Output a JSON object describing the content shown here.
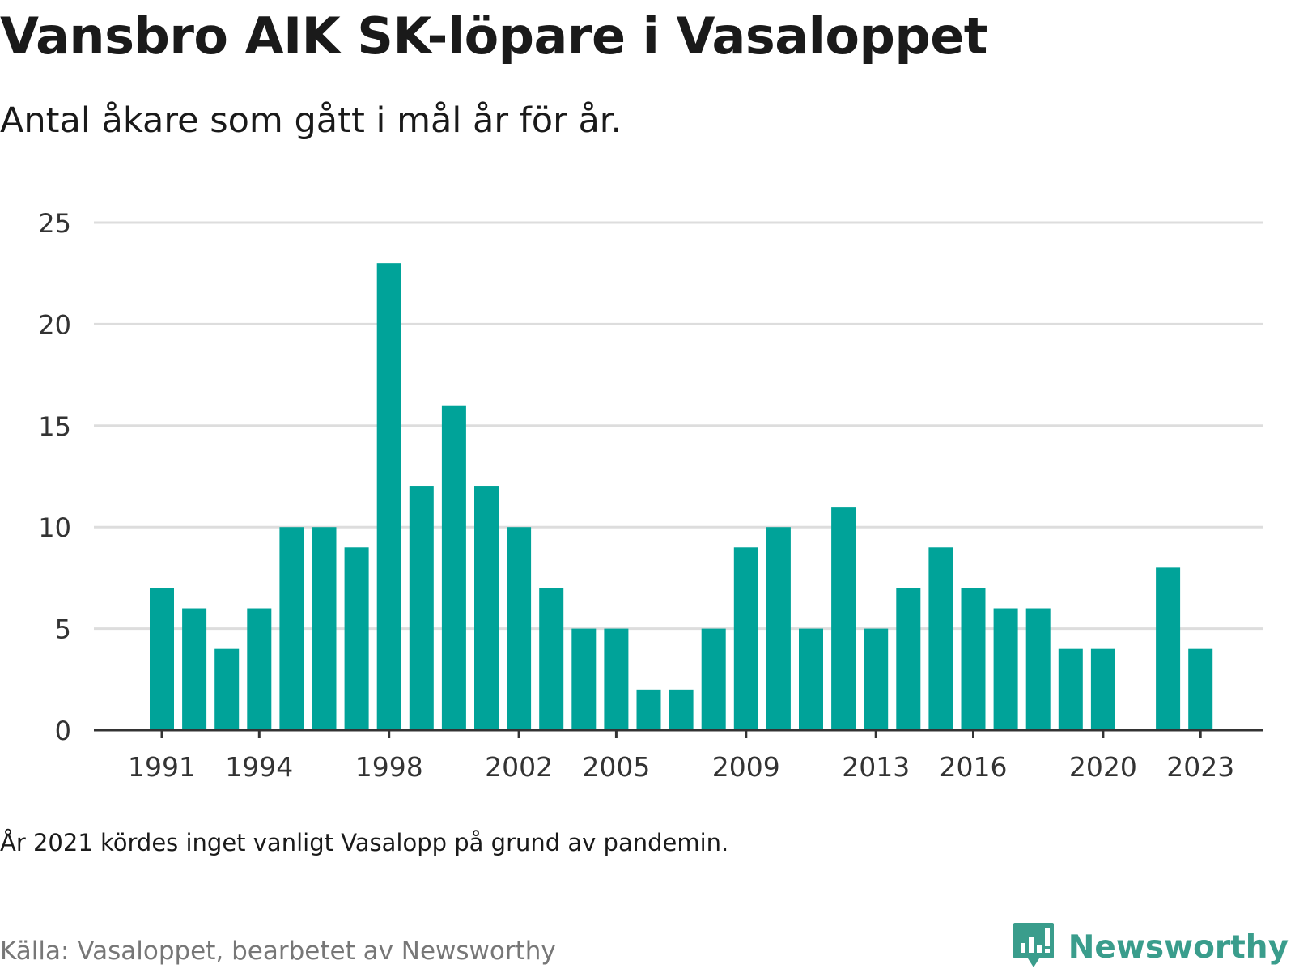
{
  "title": "Vansbro AIK SK-löpare i Vasaloppet",
  "subtitle": "Antal åkare som gått i mål år för år.",
  "note": "År 2021 kördes inget vanligt Vasalopp på grund av pandemin.",
  "source": "Källa: Vasaloppet, bearbetet av Newsworthy",
  "brand": {
    "name": "Newsworthy",
    "icon": "newsworthy-logo-icon",
    "color": "#3a9d8c"
  },
  "colors": {
    "bar": "#00a399",
    "grid": "#dddddd",
    "axis": "#333333"
  },
  "chart_data": {
    "type": "bar",
    "title": "Vansbro AIK SK-löpare i Vasaloppet",
    "subtitle": "Antal åkare som gått i mål år för år.",
    "xlabel": "",
    "ylabel": "",
    "x": [
      1991,
      1992,
      1993,
      1994,
      1995,
      1996,
      1997,
      1998,
      1999,
      2000,
      2001,
      2002,
      2003,
      2004,
      2005,
      2006,
      2007,
      2008,
      2009,
      2010,
      2011,
      2012,
      2013,
      2014,
      2015,
      2016,
      2017,
      2018,
      2019,
      2020,
      2021,
      2022,
      2023
    ],
    "values": [
      7,
      6,
      4,
      6,
      10,
      10,
      9,
      23,
      12,
      16,
      12,
      10,
      7,
      5,
      5,
      2,
      2,
      5,
      9,
      10,
      5,
      11,
      5,
      7,
      9,
      7,
      6,
      6,
      4,
      4,
      null,
      8,
      4
    ],
    "ylim": [
      0,
      25
    ],
    "yticks": [
      0,
      5,
      10,
      15,
      20,
      25
    ],
    "xticks": [
      1991,
      1994,
      1998,
      2002,
      2005,
      2009,
      2013,
      2016,
      2020,
      2023
    ],
    "grid": true,
    "legend": "none"
  }
}
